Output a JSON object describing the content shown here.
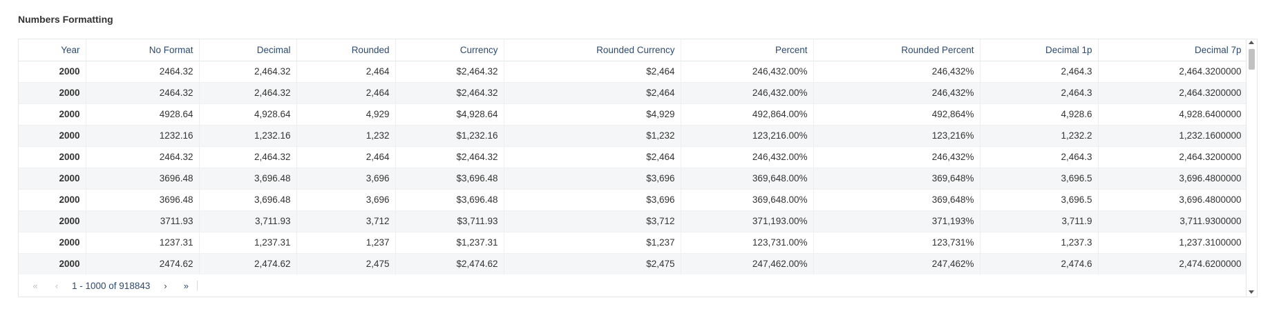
{
  "title": "Numbers Formatting",
  "table": {
    "columns": [
      "Year",
      "No Format",
      "Decimal",
      "Rounded",
      "Currency",
      "Rounded Currency",
      "Percent",
      "Rounded Percent",
      "Decimal 1p",
      "Decimal 7p"
    ],
    "rows": [
      [
        "2000",
        "2464.32",
        "2,464.32",
        "2,464",
        "$2,464.32",
        "$2,464",
        "246,432.00%",
        "246,432%",
        "2,464.3",
        "2,464.3200000"
      ],
      [
        "2000",
        "2464.32",
        "2,464.32",
        "2,464",
        "$2,464.32",
        "$2,464",
        "246,432.00%",
        "246,432%",
        "2,464.3",
        "2,464.3200000"
      ],
      [
        "2000",
        "4928.64",
        "4,928.64",
        "4,929",
        "$4,928.64",
        "$4,929",
        "492,864.00%",
        "492,864%",
        "4,928.6",
        "4,928.6400000"
      ],
      [
        "2000",
        "1232.16",
        "1,232.16",
        "1,232",
        "$1,232.16",
        "$1,232",
        "123,216.00%",
        "123,216%",
        "1,232.2",
        "1,232.1600000"
      ],
      [
        "2000",
        "2464.32",
        "2,464.32",
        "2,464",
        "$2,464.32",
        "$2,464",
        "246,432.00%",
        "246,432%",
        "2,464.3",
        "2,464.3200000"
      ],
      [
        "2000",
        "3696.48",
        "3,696.48",
        "3,696",
        "$3,696.48",
        "$3,696",
        "369,648.00%",
        "369,648%",
        "3,696.5",
        "3,696.4800000"
      ],
      [
        "2000",
        "3696.48",
        "3,696.48",
        "3,696",
        "$3,696.48",
        "$3,696",
        "369,648.00%",
        "369,648%",
        "3,696.5",
        "3,696.4800000"
      ],
      [
        "2000",
        "3711.93",
        "3,711.93",
        "3,712",
        "$3,711.93",
        "$3,712",
        "371,193.00%",
        "371,193%",
        "3,711.9",
        "3,711.9300000"
      ],
      [
        "2000",
        "1237.31",
        "1,237.31",
        "1,237",
        "$1,237.31",
        "$1,237",
        "123,731.00%",
        "123,731%",
        "1,237.3",
        "1,237.3100000"
      ],
      [
        "2000",
        "2474.62",
        "2,474.62",
        "2,475",
        "$2,474.62",
        "$2,475",
        "247,462.00%",
        "247,462%",
        "2,474.6",
        "2,474.6200000"
      ]
    ]
  },
  "pagination": {
    "first_icon": "«",
    "prev_icon": "‹",
    "range_text": "1 - 1000 of 918843",
    "next_icon": "›",
    "last_icon": "»"
  },
  "colors": {
    "header_text": "#2d4a6e",
    "row_alt_bg": "#f5f6f7",
    "border": "#e4e7ea"
  }
}
